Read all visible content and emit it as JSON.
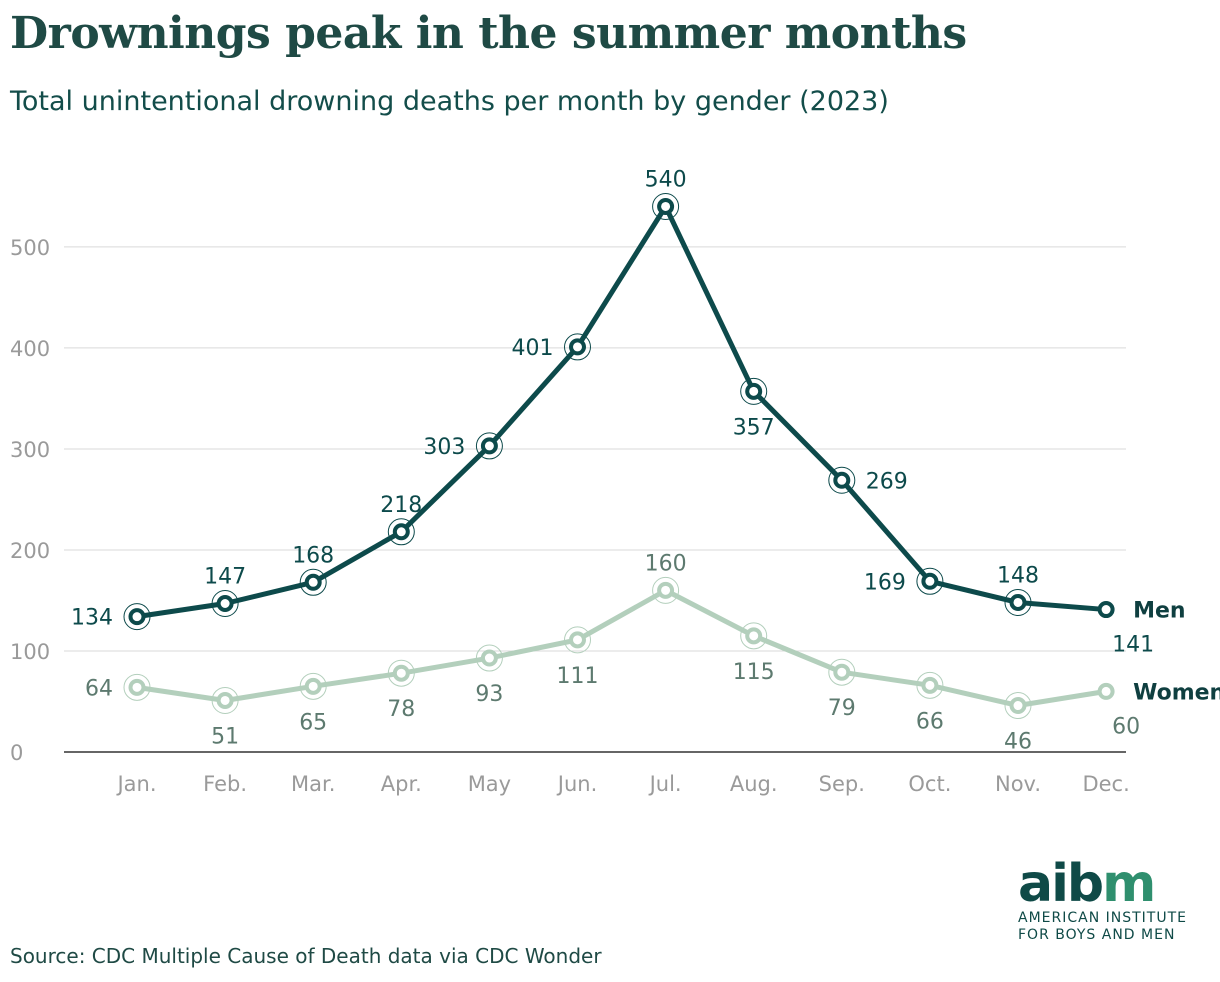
{
  "title": "Drownings peak in the summer months",
  "subtitle": "Total unintentional drowning deaths per month by gender (2023)",
  "source": "Source: CDC Multiple Cause of Death data via CDC Wonder",
  "logo": {
    "letters_a": "aib",
    "letters_b": "m",
    "line1": "AMERICAN INSTITUTE",
    "line2": "FOR BOYS AND MEN"
  },
  "colors": {
    "men": "#0d4a4b",
    "women": "#b3cfbc",
    "women_label": "#5d7a6f",
    "axis": "#9a9a9a",
    "grid": "#d9d9d9"
  },
  "chart_data": {
    "type": "line",
    "title": "Drownings peak in the summer months",
    "subtitle": "Total unintentional drowning deaths per month by gender (2023)",
    "xlabel": "",
    "ylabel": "",
    "ylim": [
      0,
      540
    ],
    "yticks": [
      0,
      100,
      200,
      300,
      400,
      500
    ],
    "grid": true,
    "legend": "inline-right",
    "categories": [
      "Jan.",
      "Feb.",
      "Mar.",
      "Apr.",
      "May",
      "Jun.",
      "Jul.",
      "Aug.",
      "Sep.",
      "Oct.",
      "Nov.",
      "Dec."
    ],
    "series": [
      {
        "name": "Men",
        "values": [
          134,
          147,
          168,
          218,
          303,
          401,
          540,
          357,
          269,
          169,
          148,
          141
        ]
      },
      {
        "name": "Women",
        "values": [
          64,
          51,
          65,
          78,
          93,
          111,
          160,
          115,
          79,
          66,
          46,
          60
        ]
      }
    ]
  }
}
